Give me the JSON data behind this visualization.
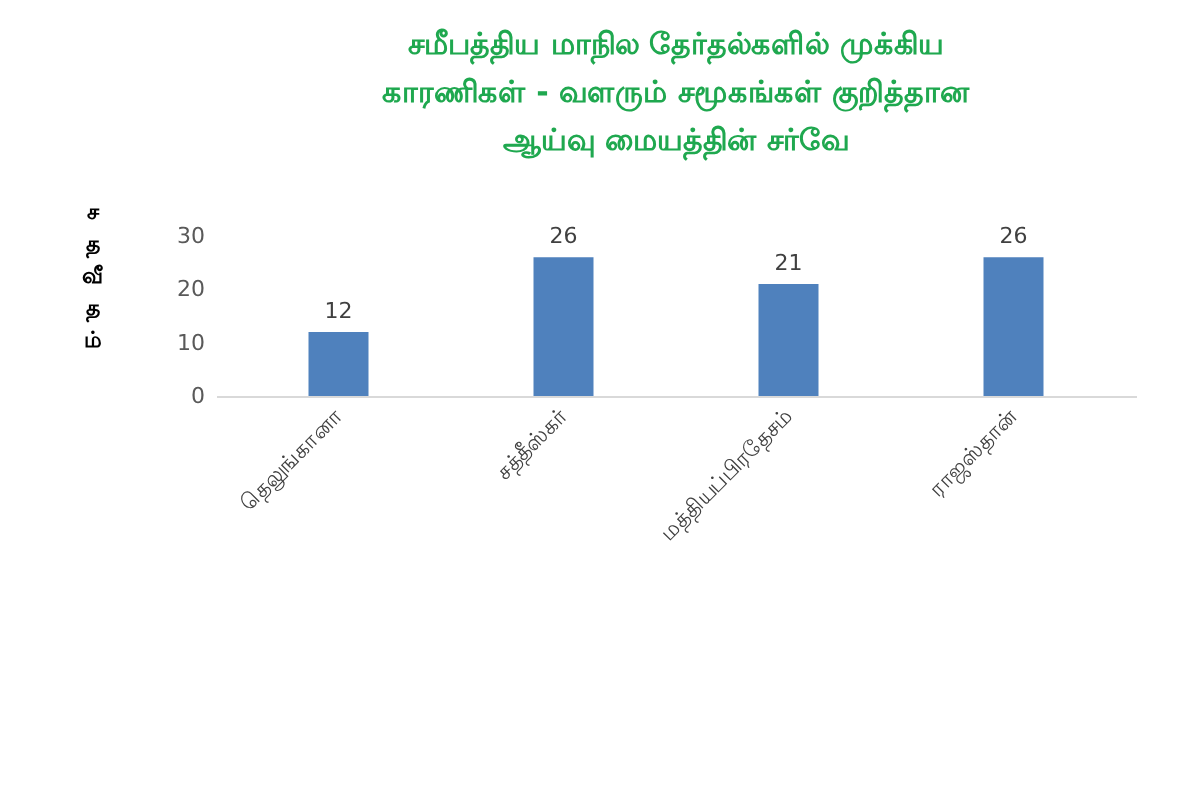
{
  "chart_data": {
    "type": "bar",
    "title": "சமீபத்திய மாநில தேர்தல்களில் முக்கிய\nகாரணிகள் - வளரும் சமூகங்கள் குறித்தான\nஆய்வு மையத்தின் சர்வே",
    "ylabel": "சதவீதம்",
    "categories": [
      "தெலுங்கானா",
      "சத்தீஸ்கர்",
      "மத்தியப்பிரதேசம்",
      "ராஜஸ்தான்"
    ],
    "values": [
      12,
      26,
      21,
      26
    ],
    "color": "#4f81bd",
    "ylim": [
      0,
      30
    ],
    "yticks": [
      0,
      10,
      20,
      30
    ],
    "grid": false,
    "data_labels": true
  }
}
